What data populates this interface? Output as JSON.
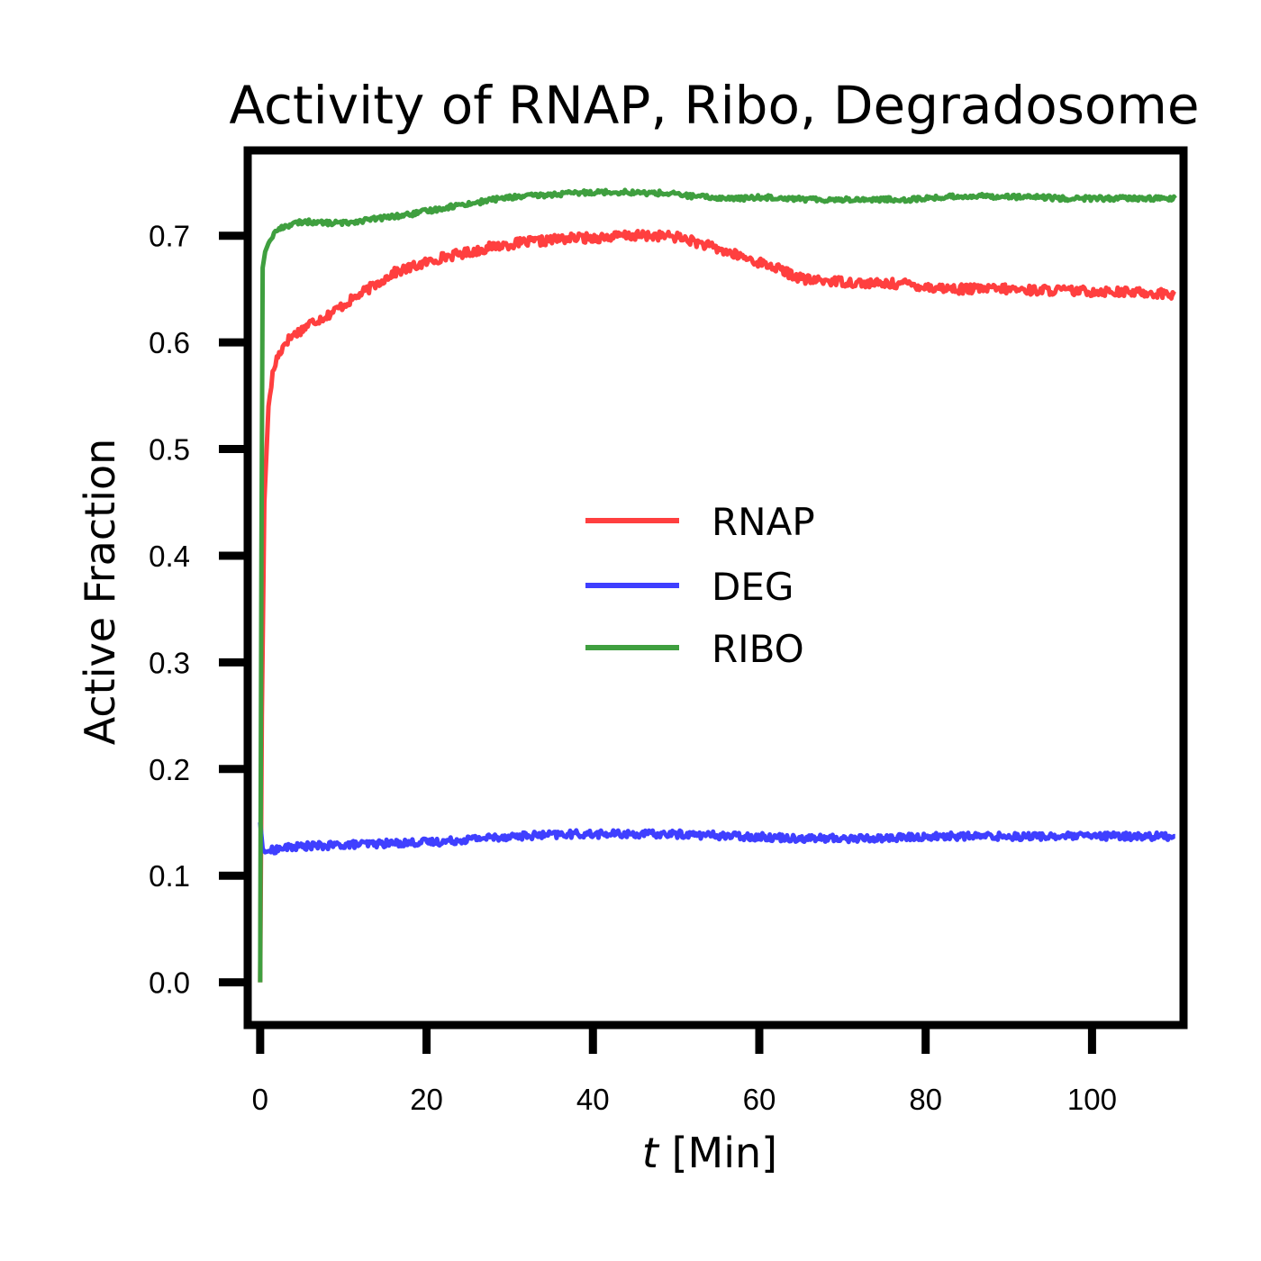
{
  "chart_data": {
    "type": "line",
    "title": "Activity of RNAP, Ribo, Degradosome",
    "xlabel_italic": "t",
    "xlabel_rest": " [Min]",
    "ylabel": "Active Fraction",
    "xlim": [
      -1.5,
      111
    ],
    "ylim": [
      -0.04,
      0.78
    ],
    "xticks": [
      0,
      20,
      40,
      60,
      80,
      100
    ],
    "xtick_labels": [
      "0",
      "20",
      "40",
      "60",
      "80",
      "100"
    ],
    "yticks": [
      0.0,
      0.1,
      0.2,
      0.3,
      0.4,
      0.5,
      0.6,
      0.7
    ],
    "ytick_labels": [
      "0.0",
      "0.1",
      "0.2",
      "0.3",
      "0.4",
      "0.5",
      "0.6",
      "0.7"
    ],
    "grid": false,
    "legend_position": "center",
    "series": [
      {
        "name": "RNAP",
        "color": "#ff3f3f",
        "x": [
          0,
          0.2,
          0.5,
          1,
          1.5,
          2,
          3,
          4,
          5,
          6,
          8,
          10,
          12,
          14,
          16,
          18,
          20,
          22,
          24,
          26,
          28,
          30,
          32,
          34,
          36,
          38,
          40,
          42,
          44,
          46,
          48,
          50,
          52,
          54,
          56,
          58,
          60,
          62,
          64,
          66,
          68,
          70,
          72,
          74,
          76,
          78,
          80,
          82,
          84,
          86,
          88,
          90,
          92,
          94,
          96,
          98,
          100,
          102,
          104,
          106,
          108,
          110
        ],
        "y": [
          0.0,
          0.25,
          0.45,
          0.54,
          0.57,
          0.585,
          0.6,
          0.607,
          0.612,
          0.618,
          0.625,
          0.635,
          0.645,
          0.655,
          0.665,
          0.67,
          0.675,
          0.68,
          0.683,
          0.686,
          0.69,
          0.692,
          0.694,
          0.695,
          0.697,
          0.698,
          0.698,
          0.699,
          0.7,
          0.7,
          0.7,
          0.699,
          0.695,
          0.69,
          0.685,
          0.68,
          0.675,
          0.67,
          0.663,
          0.658,
          0.658,
          0.657,
          0.656,
          0.655,
          0.655,
          0.655,
          0.652,
          0.651,
          0.65,
          0.65,
          0.65,
          0.65,
          0.649,
          0.649,
          0.649,
          0.648,
          0.648,
          0.648,
          0.647,
          0.647,
          0.646,
          0.645
        ]
      },
      {
        "name": "DEG",
        "color": "#3f3fff",
        "x": [
          0,
          0.3,
          0.6,
          1,
          2,
          4,
          6,
          8,
          10,
          14,
          18,
          22,
          26,
          30,
          34,
          38,
          42,
          46,
          50,
          54,
          58,
          62,
          66,
          70,
          74,
          78,
          82,
          86,
          90,
          94,
          98,
          102,
          106,
          110
        ],
        "y": [
          0.15,
          0.125,
          0.122,
          0.123,
          0.125,
          0.127,
          0.128,
          0.128,
          0.129,
          0.13,
          0.131,
          0.132,
          0.135,
          0.137,
          0.138,
          0.139,
          0.139,
          0.139,
          0.139,
          0.138,
          0.137,
          0.136,
          0.135,
          0.135,
          0.135,
          0.136,
          0.137,
          0.137,
          0.137,
          0.137,
          0.137,
          0.137,
          0.137,
          0.137
        ]
      },
      {
        "name": "RIBO",
        "color": "#3f9f3f",
        "x": [
          0,
          0.15,
          0.3,
          0.6,
          1,
          1.5,
          2,
          3,
          4,
          5,
          6,
          8,
          10,
          12,
          14,
          16,
          18,
          20,
          22,
          24,
          26,
          28,
          30,
          32,
          34,
          36,
          38,
          40,
          42,
          44,
          46,
          48,
          50,
          52,
          54,
          56,
          58,
          60,
          62,
          64,
          66,
          68,
          70,
          72,
          74,
          76,
          78,
          80,
          82,
          84,
          86,
          88,
          90,
          92,
          94,
          96,
          98,
          100,
          102,
          104,
          106,
          108,
          110
        ],
        "y": [
          0.0,
          0.4,
          0.67,
          0.685,
          0.693,
          0.7,
          0.705,
          0.709,
          0.711,
          0.713,
          0.713,
          0.712,
          0.712,
          0.714,
          0.716,
          0.718,
          0.72,
          0.723,
          0.726,
          0.729,
          0.731,
          0.734,
          0.736,
          0.737,
          0.738,
          0.739,
          0.74,
          0.741,
          0.741,
          0.741,
          0.74,
          0.74,
          0.739,
          0.737,
          0.736,
          0.735,
          0.735,
          0.736,
          0.736,
          0.735,
          0.734,
          0.734,
          0.734,
          0.734,
          0.734,
          0.734,
          0.734,
          0.735,
          0.736,
          0.737,
          0.737,
          0.737,
          0.737,
          0.736,
          0.736,
          0.735,
          0.735,
          0.735,
          0.735,
          0.735,
          0.735,
          0.735,
          0.735
        ]
      }
    ]
  }
}
